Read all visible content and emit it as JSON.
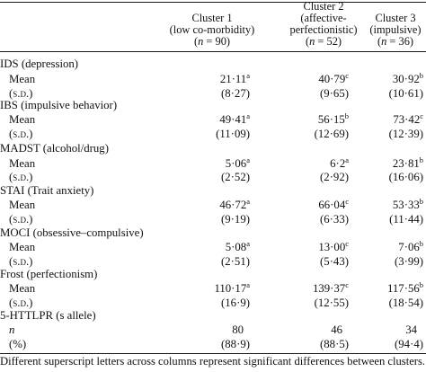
{
  "header": {
    "cluster1": {
      "line1": "Cluster 1",
      "line2": "(low co-morbidity)",
      "n_prefix": "(",
      "n_var": "n",
      "n_suffix": " = 90)"
    },
    "cluster2": {
      "line1": "Cluster 2",
      "line2": "(affective-",
      "line3": "perfectionistic)",
      "n_prefix": "(",
      "n_var": "n",
      "n_suffix": " = 52)"
    },
    "cluster3": {
      "line1": "Cluster 3",
      "line2": "(impulsive)",
      "n_prefix": "(",
      "n_var": "n",
      "n_suffix": " = 36)"
    }
  },
  "sections": [
    {
      "title": "IDS (depression)",
      "mean_label": "Mean",
      "sd_label": "(s.d.)",
      "mean": [
        {
          "v": "21·11",
          "s": "a"
        },
        {
          "v": "40·79",
          "s": "c"
        },
        {
          "v": "30·92",
          "s": "b"
        }
      ],
      "sd": [
        "(8·27)",
        "(9·65)",
        "(10·61)"
      ]
    },
    {
      "title": "IBS (impulsive behavior)",
      "mean_label": "Mean",
      "sd_label": "(s.d.)",
      "mean": [
        {
          "v": "49·41",
          "s": "a"
        },
        {
          "v": "56·15",
          "s": "b"
        },
        {
          "v": "73·42",
          "s": "c"
        }
      ],
      "sd": [
        "(11·09)",
        "(12·69)",
        "(12·39)"
      ]
    },
    {
      "title": "MADST (alcohol/drug)",
      "mean_label": "Mean",
      "sd_label": "(s.d.)",
      "mean": [
        {
          "v": "5·06",
          "s": "a"
        },
        {
          "v": "6·2",
          "s": "a"
        },
        {
          "v": "23·81",
          "s": "b"
        }
      ],
      "sd": [
        "(2·52)",
        "(2·92)",
        "(16·06)"
      ]
    },
    {
      "title": "STAI (Trait anxiety)",
      "mean_label": "Mean",
      "sd_label": "(s.d.)",
      "mean": [
        {
          "v": "46·72",
          "s": "a"
        },
        {
          "v": "66·04",
          "s": "c"
        },
        {
          "v": "53·33",
          "s": "b"
        }
      ],
      "sd": [
        "(9·19)",
        "(6·33)",
        "(11·44)"
      ]
    },
    {
      "title": "MOCI (obsessive–compulsive)",
      "mean_label": "Mean",
      "sd_label": "(s.d.)",
      "mean": [
        {
          "v": "5·08",
          "s": "a"
        },
        {
          "v": "13·00",
          "s": "c"
        },
        {
          "v": "7·06",
          "s": "b"
        }
      ],
      "sd": [
        "(2·51)",
        "(5·43)",
        "(3·99)"
      ]
    },
    {
      "title": "Frost (perfectionism)",
      "mean_label": "Mean",
      "sd_label": "(s.d.)",
      "mean": [
        {
          "v": "110·17",
          "s": "a"
        },
        {
          "v": "139·37",
          "s": "c"
        },
        {
          "v": "117·56",
          "s": "b"
        }
      ],
      "sd": [
        "(16·9)",
        "(12·55)",
        "(18·54)"
      ]
    }
  ],
  "httlpr": {
    "title": "5-HTTLPR (s allele)",
    "n_label": "n",
    "pct_label": "(%)",
    "n": [
      "80",
      "46",
      "34"
    ],
    "pct": [
      "(88·9)",
      "(88·5)",
      "(94·4)"
    ]
  },
  "footnote": "Different superscript letters across columns represent significant differences between clusters."
}
